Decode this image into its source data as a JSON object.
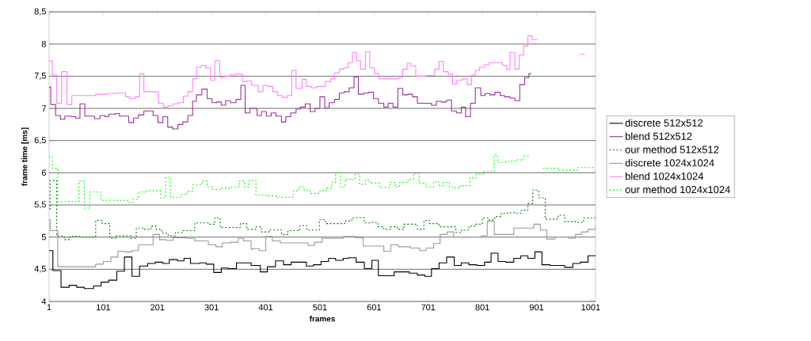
{
  "chart_data": {
    "type": "step",
    "xlabel": "frames",
    "ylabel": "frame time [ms]",
    "xlim": [
      1,
      1010
    ],
    "ylim": [
      4,
      8.5
    ],
    "xticks": [
      1,
      101,
      201,
      301,
      401,
      501,
      601,
      701,
      801,
      901,
      1001
    ],
    "yticks": [
      4,
      {
        "value": 4.5,
        "label": "4,5"
      },
      5,
      {
        "value": 5.5,
        "label": "5,5"
      },
      6,
      {
        "value": 6.5,
        "label": "6,5"
      },
      7,
      {
        "value": 7.5,
        "label": "7,5"
      },
      8,
      {
        "value": 8.5,
        "label": "8,5"
      }
    ],
    "grid": "y",
    "legend": "right",
    "marker": "none",
    "series": [
      {
        "name": "discrete 512x512",
        "color": "#000000",
        "line_style": "solid",
        "x": [
          1,
          8,
          23,
          38,
          52,
          66,
          83,
          97,
          111,
          126,
          140,
          154,
          168,
          183,
          197,
          211,
          223,
          238,
          250,
          262,
          279,
          291,
          305,
          319,
          331,
          347,
          374,
          377,
          391,
          404,
          419,
          434,
          448,
          476,
          489,
          503,
          517,
          530,
          544,
          554,
          568,
          583,
          597,
          609,
          638,
          666,
          681,
          695,
          707,
          721,
          735,
          749,
          762,
          776,
          791,
          805,
          817,
          830,
          844,
          859,
          872,
          885,
          898,
          911,
          926,
          953,
          968,
          982,
          996,
          1010
        ],
        "values": [
          4.79,
          4.48,
          4.22,
          4.25,
          4.22,
          4.2,
          4.24,
          4.3,
          4.33,
          4.47,
          4.69,
          4.39,
          4.55,
          4.59,
          4.61,
          4.59,
          4.65,
          4.63,
          4.67,
          4.59,
          4.6,
          4.58,
          4.45,
          4.52,
          4.51,
          4.6,
          4.56,
          4.56,
          4.46,
          4.54,
          4.63,
          4.57,
          4.61,
          4.55,
          4.57,
          4.62,
          4.67,
          4.64,
          4.67,
          4.68,
          4.61,
          4.51,
          4.64,
          4.4,
          4.46,
          4.44,
          4.41,
          4.39,
          4.51,
          4.6,
          4.69,
          4.56,
          4.6,
          4.57,
          4.56,
          4.61,
          4.75,
          4.62,
          4.61,
          4.67,
          4.71,
          4.67,
          4.77,
          4.57,
          4.56,
          4.53,
          4.59,
          4.61,
          4.71,
          4.72
        ]
      },
      {
        "name": "blend 512x512",
        "color": "#993399",
        "line_style": "solid",
        "x": [
          1,
          4,
          13,
          22,
          30,
          42,
          50,
          58,
          67,
          85,
          95,
          104,
          111,
          123,
          131,
          148,
          157,
          166,
          176,
          193,
          202,
          211,
          220,
          229,
          239,
          248,
          257,
          266,
          273,
          283,
          293,
          302,
          310,
          319,
          327,
          336,
          346,
          355,
          363,
          372,
          385,
          393,
          402,
          411,
          420,
          430,
          438,
          447,
          457,
          465,
          474,
          483,
          492,
          501,
          510,
          518,
          528,
          537,
          546,
          555,
          564,
          572,
          582,
          591,
          600,
          609,
          619,
          627,
          636,
          645,
          654,
          663,
          672,
          681,
          707,
          716,
          725,
          735,
          744,
          753,
          762,
          770,
          779,
          788,
          798,
          806,
          815,
          824,
          834,
          842,
          852,
          861,
          870,
          879,
          887,
          891
        ],
        "values": [
          7.33,
          7.06,
          6.89,
          6.83,
          6.88,
          6.87,
          6.85,
          7.07,
          6.88,
          6.84,
          6.89,
          6.87,
          6.91,
          6.92,
          6.88,
          6.78,
          6.85,
          6.9,
          6.96,
          6.89,
          6.78,
          6.87,
          6.71,
          6.68,
          6.75,
          6.79,
          6.89,
          7.11,
          7.21,
          7.3,
          7.15,
          7.09,
          7.1,
          7.05,
          7.12,
          7.09,
          7.14,
          7.36,
          6.93,
          7.0,
          6.89,
          6.95,
          6.88,
          6.93,
          6.88,
          6.79,
          6.87,
          6.93,
          6.99,
          7.02,
          7.07,
          6.95,
          7.0,
          7.18,
          7.01,
          7.09,
          7.14,
          7.24,
          7.26,
          7.32,
          7.49,
          7.22,
          7.24,
          7.25,
          7.15,
          7.08,
          7.02,
          7.08,
          7.02,
          7.31,
          7.21,
          7.22,
          7.18,
          7.08,
          7.05,
          7.11,
          7.1,
          7.13,
          6.96,
          6.93,
          7.02,
          6.87,
          7.08,
          7.32,
          7.2,
          7.23,
          7.21,
          7.25,
          7.2,
          7.18,
          7.16,
          7.12,
          7.37,
          7.48,
          7.54,
          7.54
        ]
      },
      {
        "name": "our method 512x512",
        "color": "#008000",
        "line_style": "dashed",
        "x": [
          1,
          3,
          15,
          29,
          39,
          58,
          87,
          99,
          113,
          125,
          152,
          162,
          177,
          189,
          199,
          209,
          221,
          234,
          248,
          270,
          295,
          307,
          317,
          354,
          366,
          383,
          393,
          407,
          430,
          442,
          464,
          477,
          500,
          511,
          547,
          560,
          583,
          593,
          608,
          619,
          632,
          644,
          656,
          681,
          693,
          703,
          721,
          752,
          762,
          776,
          788,
          801,
          811,
          824,
          836,
          848,
          861,
          873,
          885,
          894,
          905,
          917,
          941,
          953,
          976,
          988,
          1010
        ],
        "values": [
          5.44,
          5.88,
          5.02,
          4.96,
          5.01,
          5.0,
          5.26,
          5.21,
          4.98,
          5.02,
          4.98,
          5.14,
          5.12,
          5.17,
          5.12,
          5.06,
          5.02,
          5.07,
          5.1,
          5.22,
          5.2,
          5.3,
          5.15,
          5.21,
          5.12,
          5.16,
          5.08,
          5.11,
          5.04,
          5.1,
          5.18,
          5.11,
          5.27,
          5.21,
          5.25,
          5.3,
          5.22,
          5.23,
          5.16,
          5.12,
          5.16,
          5.12,
          5.2,
          5.12,
          5.26,
          5.21,
          5.16,
          5.07,
          5.11,
          5.17,
          5.2,
          5.3,
          5.27,
          5.32,
          5.37,
          5.38,
          5.37,
          5.42,
          5.52,
          5.73,
          5.61,
          5.28,
          5.34,
          5.24,
          5.23,
          5.3,
          5.34
        ]
      },
      {
        "name": "discrete 1024x1024",
        "color": "#999999",
        "line_style": "solid",
        "x": [
          1,
          3,
          17,
          87,
          101,
          115,
          128,
          140,
          154,
          166,
          193,
          205,
          217,
          230,
          254,
          270,
          295,
          309,
          321,
          336,
          350,
          360,
          374,
          377,
          389,
          401,
          413,
          428,
          479,
          491,
          505,
          544,
          566,
          581,
          619,
          632,
          646,
          668,
          685,
          697,
          711,
          723,
          736,
          748,
          799,
          810,
          823,
          859,
          896,
          908,
          920,
          935,
          960,
          973,
          984,
          996,
          1010
        ],
        "values": [
          5.27,
          5.1,
          4.54,
          4.58,
          4.62,
          4.69,
          4.78,
          4.77,
          4.79,
          4.88,
          5.04,
          4.96,
          4.95,
          4.99,
          4.98,
          4.94,
          4.88,
          4.85,
          4.91,
          4.92,
          4.98,
          4.94,
          4.81,
          4.82,
          4.79,
          5.01,
          4.94,
          4.91,
          4.87,
          4.92,
          4.98,
          5.01,
          4.99,
          4.86,
          4.78,
          4.88,
          4.85,
          4.83,
          4.79,
          4.83,
          4.9,
          5.04,
          5.08,
          5.0,
          5.02,
          5.25,
          5.04,
          5.14,
          5.2,
          5.11,
          4.97,
          5.0,
          4.98,
          5.04,
          5.08,
          5.12,
          5.18
        ]
      },
      {
        "name": "blend 1024x1024",
        "color": "#ff80ff",
        "line_style": "solid",
        "x": [
          1,
          7,
          15,
          24,
          34,
          43,
          87,
          107,
          123,
          142,
          150,
          160,
          168,
          176,
          203,
          212,
          221,
          230,
          240,
          249,
          257,
          266,
          273,
          282,
          290,
          299,
          307,
          316,
          325,
          335,
          344,
          358,
          367,
          375,
          387,
          396,
          405,
          414,
          423,
          432,
          441,
          449,
          457,
          468,
          476,
          485,
          495,
          511,
          521,
          528,
          537,
          545,
          553,
          561,
          569,
          576,
          585,
          593,
          602,
          610,
          646,
          654,
          662,
          669,
          678,
          697,
          713,
          721,
          729,
          738,
          746,
          754,
          764,
          773,
          781,
          788,
          796,
          805,
          813,
          838,
          846,
          852,
          861,
          869,
          877,
          885,
          893,
          903,
          904,
          981,
          990
        ],
        "values": [
          7.74,
          7.52,
          7.08,
          7.57,
          7.06,
          7.2,
          7.22,
          7.23,
          7.24,
          7.18,
          7.15,
          7.18,
          7.54,
          7.26,
          7.08,
          7.02,
          7.04,
          7.07,
          7.09,
          7.19,
          7.26,
          7.46,
          7.64,
          7.67,
          7.63,
          7.44,
          7.74,
          7.48,
          7.5,
          7.52,
          7.53,
          7.42,
          7.43,
          7.36,
          7.26,
          7.36,
          7.34,
          7.26,
          7.2,
          7.17,
          7.2,
          7.59,
          7.31,
          7.45,
          7.34,
          7.32,
          7.34,
          7.42,
          7.46,
          7.55,
          7.61,
          7.63,
          7.71,
          7.87,
          7.74,
          7.61,
          7.88,
          7.63,
          7.54,
          7.46,
          7.48,
          7.61,
          7.7,
          7.66,
          7.5,
          7.51,
          7.61,
          7.73,
          7.57,
          7.53,
          7.38,
          7.44,
          7.46,
          7.37,
          7.52,
          7.59,
          7.64,
          7.68,
          7.71,
          7.67,
          7.6,
          7.87,
          7.61,
          7.83,
          7.97,
          8.13,
          8.07,
          8.07,
          null,
          7.84,
          7.84
        ]
      },
      {
        "name": "our method 1024x1024",
        "color": "#00ff00",
        "line_style": "dashed",
        "x": [
          1,
          7,
          17,
          56,
          66,
          76,
          97,
          146,
          156,
          166,
          181,
          207,
          216,
          225,
          244,
          256,
          266,
          283,
          293,
          303,
          317,
          336,
          352,
          362,
          370,
          383,
          403,
          423,
          452,
          462,
          472,
          483,
          501,
          513,
          523,
          530,
          539,
          548,
          558,
          566,
          574,
          585,
          593,
          611,
          630,
          640,
          648,
          664,
          674,
          684,
          697,
          711,
          721,
          729,
          740,
          750,
          760,
          778,
          790,
          803,
          823,
          829,
          844,
          861,
          877,
          890,
          891,
          913,
          943,
          976,
          1010
        ],
        "values": [
          6.25,
          6.07,
          5.55,
          5.87,
          5.45,
          5.7,
          5.57,
          5.54,
          5.59,
          5.7,
          5.72,
          5.61,
          5.93,
          5.62,
          5.66,
          5.71,
          5.81,
          5.87,
          5.78,
          5.74,
          5.76,
          5.78,
          5.87,
          5.78,
          5.88,
          5.65,
          5.64,
          5.62,
          5.72,
          5.78,
          5.73,
          5.68,
          5.72,
          5.76,
          5.85,
          6.0,
          5.78,
          5.9,
          5.89,
          5.98,
          5.82,
          5.89,
          5.84,
          5.77,
          5.85,
          5.78,
          5.85,
          5.9,
          5.99,
          5.84,
          5.78,
          5.86,
          5.8,
          5.85,
          5.78,
          5.76,
          5.8,
          5.92,
          5.98,
          6.02,
          6.28,
          6.16,
          6.18,
          6.2,
          6.26,
          6.26,
          null,
          6.07,
          6.04,
          6.08,
          6.08
        ]
      }
    ]
  }
}
